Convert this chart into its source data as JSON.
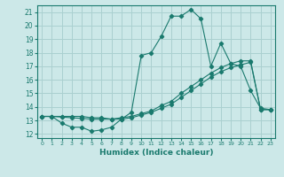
{
  "xlabel": "Humidex (Indice chaleur)",
  "xlim": [
    -0.5,
    23.5
  ],
  "ylim": [
    11.7,
    21.5
  ],
  "yticks": [
    12,
    13,
    14,
    15,
    16,
    17,
    18,
    19,
    20,
    21
  ],
  "xticks": [
    0,
    1,
    2,
    3,
    4,
    5,
    6,
    7,
    8,
    9,
    10,
    11,
    12,
    13,
    14,
    15,
    16,
    17,
    18,
    19,
    20,
    21,
    22,
    23
  ],
  "bg_color": "#cce8e8",
  "grid_color": "#aad0d0",
  "line_color": "#1a7a6e",
  "line1_x": [
    0,
    1,
    2,
    3,
    4,
    5,
    6,
    7,
    8,
    9,
    10,
    11,
    12,
    13,
    14,
    15,
    16,
    17,
    18,
    19,
    20,
    21,
    22,
    23
  ],
  "line1_y": [
    13.3,
    13.3,
    12.8,
    12.5,
    12.5,
    12.2,
    12.3,
    12.5,
    13.1,
    13.6,
    17.8,
    18.0,
    19.2,
    20.7,
    20.7,
    21.2,
    20.5,
    17.0,
    18.7,
    17.2,
    17.0,
    15.2,
    13.9,
    13.8
  ],
  "line2_x": [
    0,
    1,
    2,
    3,
    4,
    5,
    6,
    7,
    8,
    9,
    10,
    11,
    12,
    13,
    14,
    15,
    16,
    17,
    18,
    19,
    20,
    21,
    22,
    23
  ],
  "line2_y": [
    13.3,
    13.3,
    13.25,
    13.2,
    13.15,
    13.1,
    13.1,
    13.1,
    13.2,
    13.3,
    13.5,
    13.7,
    14.1,
    14.4,
    15.0,
    15.5,
    16.0,
    16.5,
    16.9,
    17.2,
    17.4,
    17.4,
    13.8,
    13.8
  ],
  "line3_x": [
    0,
    1,
    2,
    3,
    4,
    5,
    6,
    7,
    8,
    9,
    10,
    11,
    12,
    13,
    14,
    15,
    16,
    17,
    18,
    19,
    20,
    21,
    22,
    23
  ],
  "line3_y": [
    13.3,
    13.3,
    13.3,
    13.3,
    13.3,
    13.2,
    13.2,
    13.1,
    13.1,
    13.2,
    13.4,
    13.6,
    13.9,
    14.2,
    14.7,
    15.2,
    15.7,
    16.2,
    16.6,
    16.9,
    17.1,
    17.3,
    13.8,
    13.8
  ]
}
